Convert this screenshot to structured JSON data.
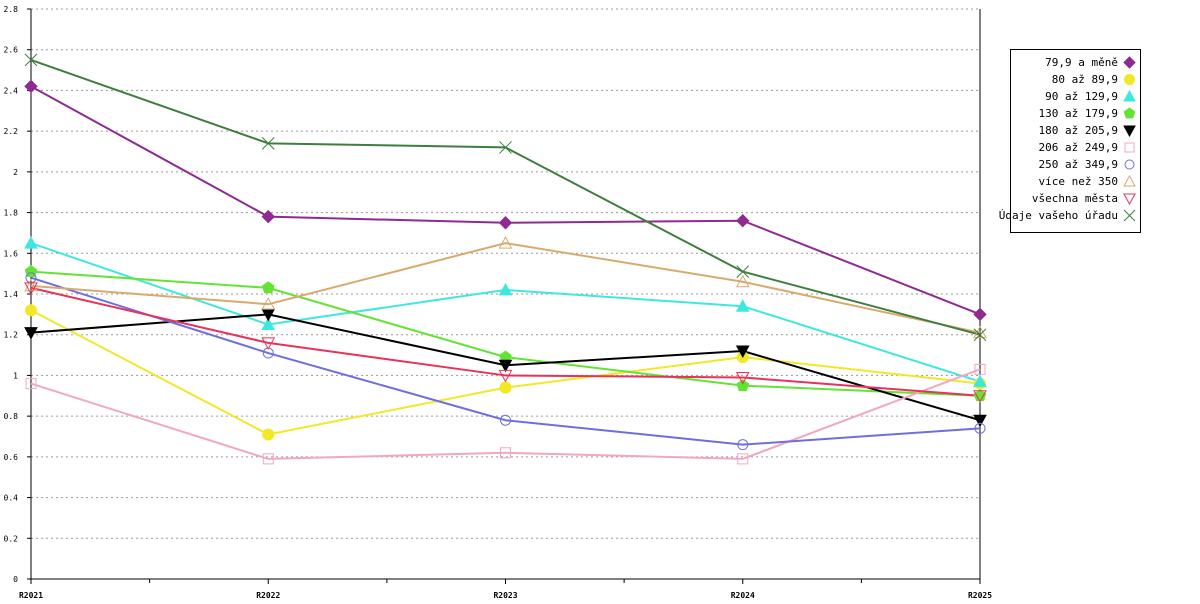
{
  "chart_data": {
    "type": "line",
    "categories": [
      "R2021",
      "R2022",
      "R2023",
      "R2024",
      "R2025"
    ],
    "ylim": [
      0,
      2.8
    ],
    "yticks": [
      0,
      0.2,
      0.4,
      0.6,
      0.8,
      1,
      1.2,
      1.4,
      1.6,
      1.8,
      2,
      2.2,
      2.4,
      2.6,
      2.8
    ],
    "ytick_labels": [
      "0",
      "0.2",
      "0.4",
      "0.6",
      "0.8",
      "1",
      "1.2",
      "1.4",
      "1.6",
      "1.8",
      "2",
      "2.2",
      "2.4",
      "2.6",
      "2.8"
    ],
    "grid": "horizontal dashed",
    "legend_position": "right",
    "series": [
      {
        "name": "79,9 a měně",
        "color": "#8e2a92",
        "marker": "diamond-filled",
        "values": [
          2.42,
          1.78,
          1.75,
          1.76,
          1.3
        ]
      },
      {
        "name": "80 až 89,9",
        "color": "#f2e826",
        "marker": "circle-filled",
        "values": [
          1.32,
          0.71,
          0.94,
          1.09,
          0.96
        ]
      },
      {
        "name": "90 až 129,9",
        "color": "#3ee8e0",
        "marker": "triangle-filled",
        "values": [
          1.65,
          1.25,
          1.42,
          1.34,
          0.97
        ]
      },
      {
        "name": "130 až 179,9",
        "color": "#63e432",
        "marker": "pentagon-filled",
        "values": [
          1.51,
          1.43,
          1.09,
          0.95,
          0.9
        ]
      },
      {
        "name": "180 až 205,9",
        "color": "#000000",
        "marker": "triangle-down-filled",
        "values": [
          1.21,
          1.3,
          1.05,
          1.12,
          0.78
        ]
      },
      {
        "name": "206 až 249,9",
        "color": "#f0a8c0",
        "marker": "square-open",
        "values": [
          0.96,
          0.59,
          0.62,
          0.59,
          1.03
        ]
      },
      {
        "name": "250 až 349,9",
        "color": "#6e6ee2",
        "marker": "circle-open",
        "values": [
          1.48,
          1.11,
          0.78,
          0.66,
          0.74
        ]
      },
      {
        "name": "více než 350",
        "color": "#d8aa6e",
        "marker": "triangle-open",
        "values": [
          1.44,
          1.35,
          1.65,
          1.46,
          1.21
        ]
      },
      {
        "name": "všechna města",
        "color": "#e8325a",
        "marker": "triangle-down-open",
        "values": [
          1.43,
          1.16,
          1.0,
          0.99,
          0.9
        ]
      },
      {
        "name": "Údaje vašeho úřadu",
        "color": "#3e7e3e",
        "marker": "x-cross",
        "values": [
          2.55,
          2.14,
          2.12,
          1.51,
          1.2
        ]
      }
    ]
  }
}
